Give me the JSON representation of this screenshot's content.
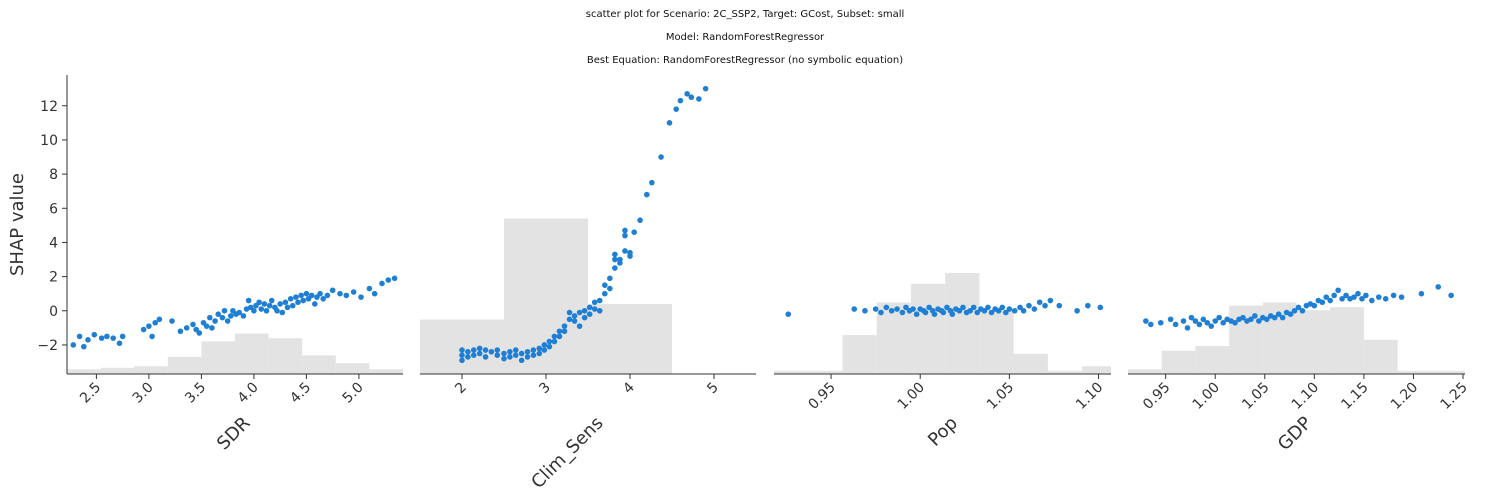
{
  "chart": {
    "title_line1": "scatter plot for Scenario: 2C_SSP2, Target: GCost, Subset: small",
    "title_line2": "Model: RandomForestRegressor",
    "title_line3": "Best Equation: RandomForestRegressor (no symbolic equation)"
  },
  "colors": {
    "points": "#1f7fd4",
    "histogram": "#e3e3e3",
    "axis": "#333333"
  },
  "chart_data": {
    "type": "scatter",
    "ylabel": "SHAP value",
    "ylim": [
      -3.7,
      13.8
    ],
    "yticks": [
      -2,
      0,
      2,
      4,
      6,
      8,
      10,
      12
    ],
    "panels": [
      {
        "xlabel": "SDR",
        "xlim": [
          2.22,
          5.42
        ],
        "xticks": [
          2.5,
          3.0,
          3.5,
          4.0,
          4.5,
          5.0
        ],
        "xtick_labels": [
          "2.5",
          "3.0",
          "3.5",
          "4.0",
          "4.5",
          "5.0"
        ],
        "hist_bins": [
          2.22,
          2.54,
          2.86,
          3.18,
          3.5,
          3.82,
          4.14,
          4.46,
          4.78,
          5.1,
          5.42
        ],
        "hist_heights": [
          0.03,
          0.04,
          0.05,
          0.11,
          0.21,
          0.26,
          0.23,
          0.12,
          0.07,
          0.03
        ],
        "points": [
          [
            2.28,
            -2.0
          ],
          [
            2.34,
            -1.5
          ],
          [
            2.38,
            -2.1
          ],
          [
            2.42,
            -1.7
          ],
          [
            2.48,
            -1.4
          ],
          [
            2.55,
            -1.6
          ],
          [
            2.6,
            -1.5
          ],
          [
            2.66,
            -1.6
          ],
          [
            2.72,
            -1.9
          ],
          [
            2.75,
            -1.5
          ],
          [
            2.95,
            -1.1
          ],
          [
            3.0,
            -0.9
          ],
          [
            3.03,
            -1.5
          ],
          [
            3.06,
            -0.7
          ],
          [
            3.1,
            -0.5
          ],
          [
            3.22,
            -0.6
          ],
          [
            3.3,
            -1.2
          ],
          [
            3.36,
            -1.0
          ],
          [
            3.42,
            -0.8
          ],
          [
            3.45,
            -1.1
          ],
          [
            3.48,
            -1.3
          ],
          [
            3.52,
            -0.7
          ],
          [
            3.55,
            -0.9
          ],
          [
            3.58,
            -0.4
          ],
          [
            3.6,
            -1.0
          ],
          [
            3.63,
            -0.6
          ],
          [
            3.66,
            -0.2
          ],
          [
            3.7,
            -0.4
          ],
          [
            3.72,
            0.0
          ],
          [
            3.75,
            -0.6
          ],
          [
            3.78,
            -0.3
          ],
          [
            3.8,
            0.0
          ],
          [
            3.83,
            -0.2
          ],
          [
            3.86,
            -0.1
          ],
          [
            3.9,
            -0.3
          ],
          [
            3.93,
            0.1
          ],
          [
            3.95,
            0.6
          ],
          [
            3.97,
            0.2
          ],
          [
            4.0,
            0.0
          ],
          [
            4.02,
            0.3
          ],
          [
            4.05,
            0.5
          ],
          [
            4.07,
            0.1
          ],
          [
            4.1,
            0.4
          ],
          [
            4.12,
            0.0
          ],
          [
            4.15,
            0.3
          ],
          [
            4.17,
            0.6
          ],
          [
            4.2,
            0.2
          ],
          [
            4.22,
            0.0
          ],
          [
            4.25,
            0.4
          ],
          [
            4.27,
            -0.1
          ],
          [
            4.3,
            0.5
          ],
          [
            4.32,
            0.2
          ],
          [
            4.35,
            0.7
          ],
          [
            4.37,
            0.3
          ],
          [
            4.4,
            0.8
          ],
          [
            4.42,
            0.5
          ],
          [
            4.45,
            0.9
          ],
          [
            4.47,
            0.6
          ],
          [
            4.5,
            1.0
          ],
          [
            4.52,
            0.7
          ],
          [
            4.55,
            0.9
          ],
          [
            4.58,
            0.4
          ],
          [
            4.6,
            0.8
          ],
          [
            4.63,
            1.0
          ],
          [
            4.66,
            0.7
          ],
          [
            4.7,
            0.9
          ],
          [
            4.75,
            1.2
          ],
          [
            4.82,
            1.0
          ],
          [
            4.88,
            0.9
          ],
          [
            4.95,
            1.1
          ],
          [
            5.02,
            0.8
          ],
          [
            5.1,
            1.3
          ],
          [
            5.15,
            1.0
          ],
          [
            5.22,
            1.6
          ],
          [
            5.28,
            1.8
          ],
          [
            5.34,
            1.9
          ]
        ]
      },
      {
        "xlabel": "Clim_Sens",
        "xlim": [
          1.5,
          5.5
        ],
        "xticks": [
          2,
          3,
          4,
          5
        ],
        "xtick_labels": [
          "2",
          "3",
          "4",
          "5"
        ],
        "hist_bins": [
          1.5,
          2.5,
          3.5,
          4.5,
          5.5
        ],
        "hist_heights": [
          0.35,
          1.0,
          0.45,
          0.0
        ],
        "points": [
          [
            2.0,
            -2.3
          ],
          [
            2.0,
            -2.6
          ],
          [
            2.0,
            -2.9
          ],
          [
            2.07,
            -2.4
          ],
          [
            2.07,
            -2.7
          ],
          [
            2.14,
            -2.3
          ],
          [
            2.14,
            -2.6
          ],
          [
            2.21,
            -2.2
          ],
          [
            2.21,
            -2.5
          ],
          [
            2.28,
            -2.3
          ],
          [
            2.28,
            -2.7
          ],
          [
            2.35,
            -2.4
          ],
          [
            2.42,
            -2.3
          ],
          [
            2.42,
            -2.6
          ],
          [
            2.5,
            -2.5
          ],
          [
            2.5,
            -2.8
          ],
          [
            2.57,
            -2.4
          ],
          [
            2.57,
            -2.7
          ],
          [
            2.64,
            -2.3
          ],
          [
            2.64,
            -2.6
          ],
          [
            2.71,
            -2.5
          ],
          [
            2.71,
            -2.9
          ],
          [
            2.78,
            -2.4
          ],
          [
            2.78,
            -2.7
          ],
          [
            2.85,
            -2.3
          ],
          [
            2.85,
            -2.6
          ],
          [
            2.92,
            -2.2
          ],
          [
            2.92,
            -2.5
          ],
          [
            2.98,
            -2.0
          ],
          [
            2.98,
            -2.3
          ],
          [
            3.04,
            -1.8
          ],
          [
            3.04,
            -2.1
          ],
          [
            3.1,
            -1.5
          ],
          [
            3.1,
            -1.8
          ],
          [
            3.16,
            -1.2
          ],
          [
            3.16,
            -1.5
          ],
          [
            3.22,
            -0.9
          ],
          [
            3.22,
            -1.2
          ],
          [
            3.28,
            -0.5
          ],
          [
            3.28,
            -0.1
          ],
          [
            3.34,
            -0.3
          ],
          [
            3.34,
            -0.6
          ],
          [
            3.4,
            -0.1
          ],
          [
            3.4,
            -0.9
          ],
          [
            3.46,
            0.0
          ],
          [
            3.46,
            -0.4
          ],
          [
            3.52,
            0.2
          ],
          [
            3.52,
            -0.2
          ],
          [
            3.58,
            0.5
          ],
          [
            3.58,
            0.1
          ],
          [
            3.64,
            0.6
          ],
          [
            3.64,
            0.0
          ],
          [
            3.7,
            1.0
          ],
          [
            3.7,
            1.5
          ],
          [
            3.76,
            1.3
          ],
          [
            3.76,
            1.9
          ],
          [
            3.82,
            2.5
          ],
          [
            3.82,
            3.0
          ],
          [
            3.82,
            3.3
          ],
          [
            3.88,
            3.0
          ],
          [
            3.88,
            2.8
          ],
          [
            3.94,
            3.5
          ],
          [
            3.94,
            4.7
          ],
          [
            3.94,
            4.4
          ],
          [
            4.0,
            3.2
          ],
          [
            4.0,
            3.4
          ],
          [
            4.05,
            4.6
          ],
          [
            4.12,
            5.3
          ],
          [
            4.2,
            6.8
          ],
          [
            4.26,
            7.5
          ],
          [
            4.37,
            9.0
          ],
          [
            4.47,
            11.0
          ],
          [
            4.55,
            11.8
          ],
          [
            4.6,
            12.3
          ],
          [
            4.68,
            12.7
          ],
          [
            4.73,
            12.5
          ],
          [
            4.82,
            12.4
          ],
          [
            4.9,
            13.0
          ]
        ]
      },
      {
        "xlabel": "Pop",
        "xlim": [
          0.918,
          1.107
        ],
        "xticks": [
          0.95,
          1.0,
          1.05,
          1.1
        ],
        "xtick_labels": [
          "0.95",
          "1.00",
          "1.05",
          "1.10"
        ],
        "hist_bins": [
          0.918,
          0.9372,
          0.9564,
          0.9756,
          0.9948,
          1.014,
          1.0332,
          1.0524,
          1.0716,
          1.0908,
          1.107
        ],
        "hist_heights": [
          0.02,
          0.02,
          0.25,
          0.46,
          0.58,
          0.65,
          0.41,
          0.13,
          0.02,
          0.05
        ],
        "points": [
          [
            0.926,
            -0.2
          ],
          [
            0.963,
            0.1
          ],
          [
            0.969,
            0.0
          ],
          [
            0.975,
            0.1
          ],
          [
            0.978,
            -0.1
          ],
          [
            0.981,
            0.2
          ],
          [
            0.984,
            0.0
          ],
          [
            0.987,
            0.1
          ],
          [
            0.99,
            -0.1
          ],
          [
            0.992,
            0.2
          ],
          [
            0.994,
            0.0
          ],
          [
            0.996,
            0.1
          ],
          [
            0.998,
            -0.2
          ],
          [
            1.0,
            0.1
          ],
          [
            1.002,
            0.0
          ],
          [
            1.003,
            -0.1
          ],
          [
            1.005,
            0.2
          ],
          [
            1.007,
            0.0
          ],
          [
            1.008,
            -0.2
          ],
          [
            1.01,
            0.1
          ],
          [
            1.012,
            0.0
          ],
          [
            1.013,
            -0.1
          ],
          [
            1.015,
            0.2
          ],
          [
            1.017,
            0.0
          ],
          [
            1.018,
            -0.2
          ],
          [
            1.02,
            0.1
          ],
          [
            1.022,
            0.0
          ],
          [
            1.024,
            0.2
          ],
          [
            1.026,
            -0.1
          ],
          [
            1.028,
            0.0
          ],
          [
            1.03,
            0.2
          ],
          [
            1.032,
            -0.1
          ],
          [
            1.034,
            0.1
          ],
          [
            1.036,
            0.0
          ],
          [
            1.038,
            0.2
          ],
          [
            1.04,
            -0.1
          ],
          [
            1.042,
            0.1
          ],
          [
            1.044,
            0.0
          ],
          [
            1.046,
            0.2
          ],
          [
            1.048,
            -0.1
          ],
          [
            1.05,
            0.1
          ],
          [
            1.053,
            0.0
          ],
          [
            1.056,
            0.2
          ],
          [
            1.058,
            0.0
          ],
          [
            1.061,
            0.3
          ],
          [
            1.064,
            0.1
          ],
          [
            1.067,
            0.5
          ],
          [
            1.07,
            0.3
          ],
          [
            1.073,
            0.6
          ],
          [
            1.078,
            0.3
          ],
          [
            1.088,
            0.0
          ],
          [
            1.094,
            0.3
          ],
          [
            1.101,
            0.2
          ]
        ]
      },
      {
        "xlabel": "GDP",
        "xlim": [
          0.912,
          1.252
        ],
        "xticks": [
          0.95,
          1.0,
          1.05,
          1.1,
          1.15,
          1.2,
          1.25
        ],
        "xtick_labels": [
          "0.95",
          "1.00",
          "1.05",
          "1.10",
          "1.15",
          "1.20",
          "1.25"
        ],
        "hist_bins": [
          0.912,
          0.946,
          0.98,
          1.014,
          1.048,
          1.082,
          1.116,
          1.15,
          1.184,
          1.218,
          1.252
        ],
        "hist_heights": [
          0.03,
          0.15,
          0.18,
          0.44,
          0.46,
          0.41,
          0.43,
          0.22,
          0.02,
          0.02
        ],
        "points": [
          [
            0.93,
            -0.6
          ],
          [
            0.935,
            -0.8
          ],
          [
            0.945,
            -0.7
          ],
          [
            0.955,
            -0.5
          ],
          [
            0.96,
            -0.8
          ],
          [
            0.968,
            -0.6
          ],
          [
            0.972,
            -1.0
          ],
          [
            0.976,
            -0.4
          ],
          [
            0.98,
            -0.6
          ],
          [
            0.984,
            -0.8
          ],
          [
            0.988,
            -0.5
          ],
          [
            0.992,
            -0.7
          ],
          [
            0.996,
            -0.9
          ],
          [
            1.0,
            -0.6
          ],
          [
            1.004,
            -0.4
          ],
          [
            1.008,
            -0.7
          ],
          [
            1.012,
            -0.5
          ],
          [
            1.016,
            -0.6
          ],
          [
            1.02,
            -0.7
          ],
          [
            1.024,
            -0.5
          ],
          [
            1.028,
            -0.4
          ],
          [
            1.032,
            -0.6
          ],
          [
            1.036,
            -0.5
          ],
          [
            1.04,
            -0.3
          ],
          [
            1.044,
            -0.6
          ],
          [
            1.048,
            -0.4
          ],
          [
            1.052,
            -0.5
          ],
          [
            1.056,
            -0.3
          ],
          [
            1.06,
            -0.4
          ],
          [
            1.064,
            -0.2
          ],
          [
            1.068,
            -0.4
          ],
          [
            1.072,
            -0.1
          ],
          [
            1.076,
            -0.2
          ],
          [
            1.08,
            0.0
          ],
          [
            1.084,
            0.2
          ],
          [
            1.088,
            0.0
          ],
          [
            1.092,
            0.3
          ],
          [
            1.096,
            0.4
          ],
          [
            1.1,
            0.3
          ],
          [
            1.104,
            0.6
          ],
          [
            1.108,
            0.5
          ],
          [
            1.112,
            0.8
          ],
          [
            1.116,
            0.6
          ],
          [
            1.12,
            0.9
          ],
          [
            1.124,
            1.2
          ],
          [
            1.128,
            0.7
          ],
          [
            1.132,
            0.9
          ],
          [
            1.136,
            0.7
          ],
          [
            1.14,
            0.8
          ],
          [
            1.144,
            1.0
          ],
          [
            1.148,
            0.7
          ],
          [
            1.152,
            0.9
          ],
          [
            1.158,
            0.6
          ],
          [
            1.165,
            0.8
          ],
          [
            1.172,
            0.7
          ],
          [
            1.18,
            0.9
          ],
          [
            1.188,
            0.8
          ],
          [
            1.208,
            1.0
          ],
          [
            1.225,
            1.4
          ],
          [
            1.238,
            0.9
          ]
        ]
      }
    ]
  }
}
